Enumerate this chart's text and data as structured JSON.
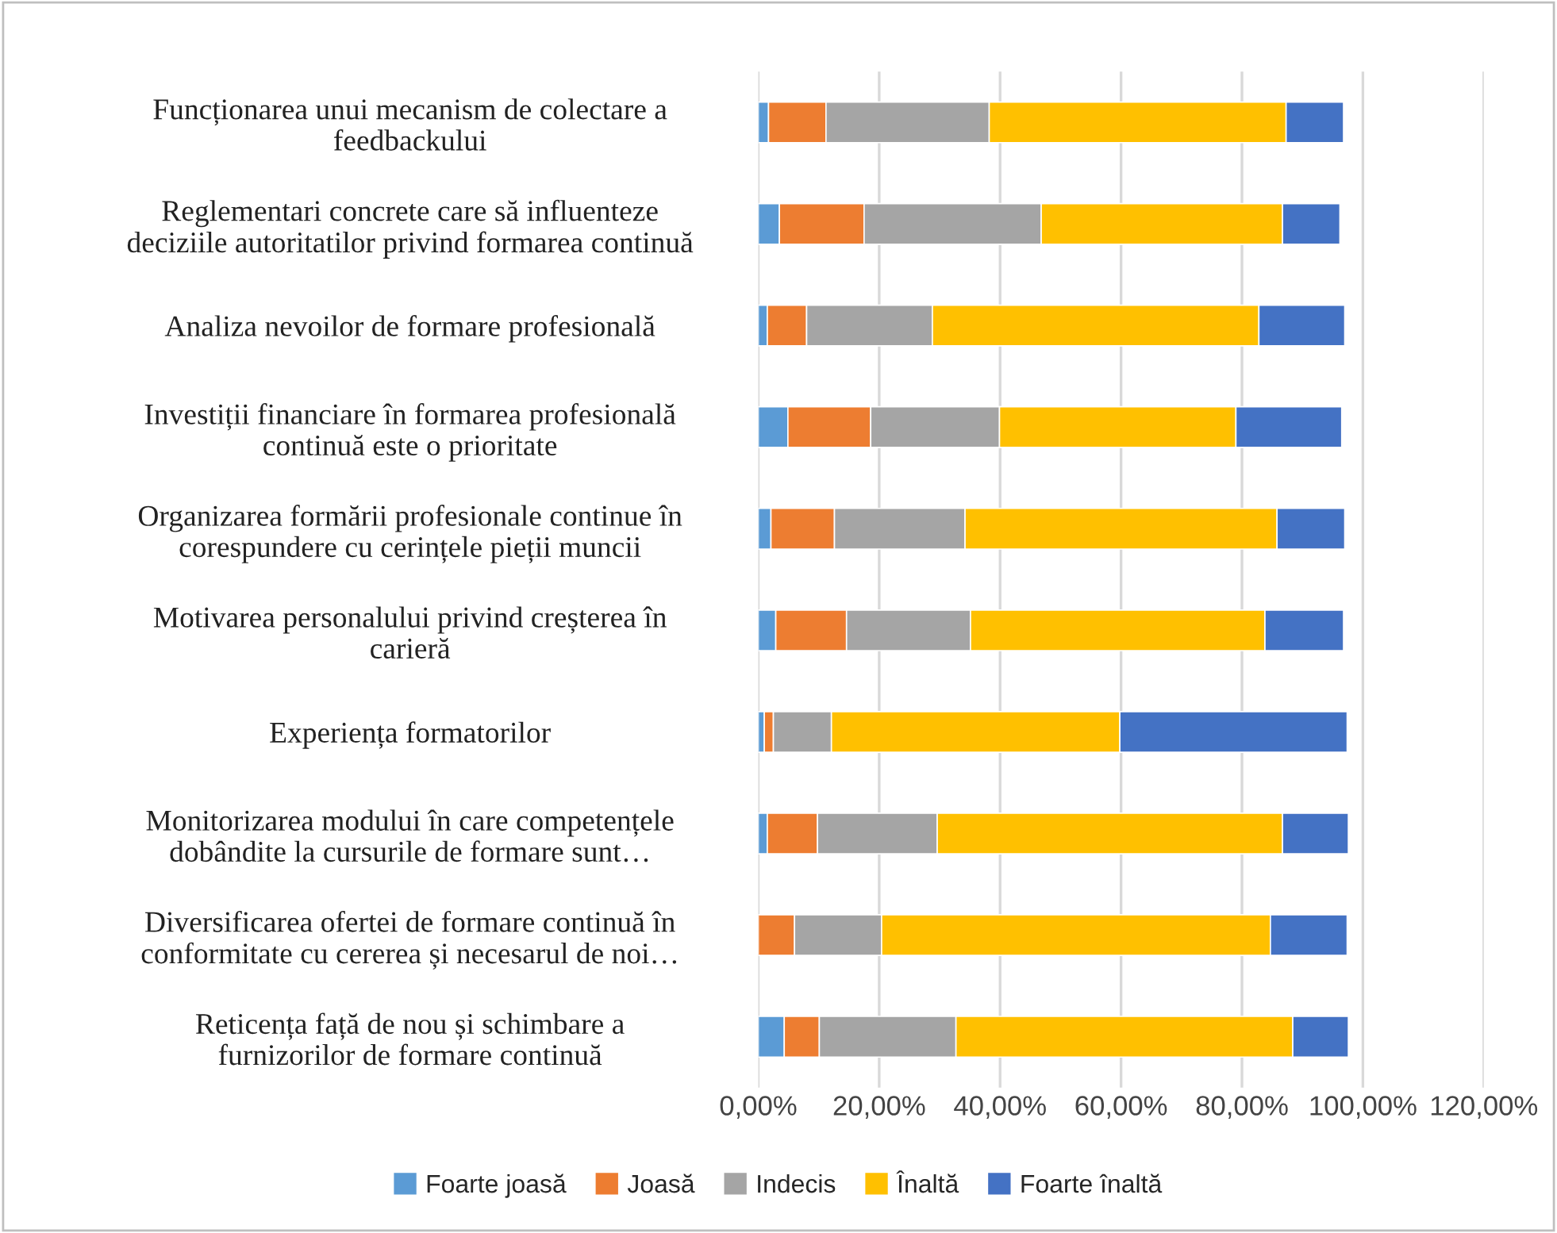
{
  "chart_data": {
    "type": "bar",
    "orientation": "horizontal",
    "stacked": true,
    "categories": [
      "Funcționarea unui mecanism de colectare a\nfeedbackului",
      "Reglementari concrete care să influenteze\ndeciziile autoritatilor privind formarea continuă",
      "Analiza nevoilor de formare profesională",
      "Investiții financiare în formarea profesională\ncontinuă este o prioritate",
      "Organizarea formării profesionale continue în\ncorespundere cu cerințele pieții muncii",
      "Motivarea personalului privind creșterea în\ncarieră",
      "Experiența formatorilor",
      "Monitorizarea modului în care competențele\ndobândite la cursurile de formare sunt…",
      "Diversificarea ofertei de formare continuă în\nconformitate cu cererea și necesarul de noi…",
      "Reticența față de nou și schimbare a\nfurnizorilor de formare continuă"
    ],
    "series": [
      {
        "name": "Foarte joasă",
        "color": "#5b9bd5",
        "values": [
          1.7,
          3.5,
          1.5,
          4.9,
          2.1,
          2.9,
          1.0,
          1.5,
          0,
          4.3
        ]
      },
      {
        "name": "Joasă",
        "color": "#ed7d31",
        "values": [
          9.5,
          14.0,
          6.5,
          13.7,
          10.5,
          11.7,
          1.5,
          8.3,
          6.0,
          5.8
        ]
      },
      {
        "name": "Indecis",
        "color": "#a5a5a5",
        "values": [
          27.0,
          29.3,
          20.8,
          21.3,
          21.6,
          20.5,
          9.6,
          19.8,
          14.4,
          22.6
        ]
      },
      {
        "name": "Înaltă",
        "color": "#ffc000",
        "values": [
          49.1,
          39.9,
          54.0,
          39.1,
          51.6,
          48.7,
          47.7,
          57.1,
          64.3,
          55.7
        ]
      },
      {
        "name": "Foarte înaltă",
        "color": "#4472c4",
        "values": [
          9.5,
          9.5,
          14.2,
          17.5,
          11.2,
          13.0,
          37.6,
          10.9,
          12.7,
          9.2
        ]
      }
    ],
    "xlim": [
      0,
      120
    ],
    "xticks": [
      {
        "value": 0,
        "label": "0,00%"
      },
      {
        "value": 20,
        "label": "20,00%"
      },
      {
        "value": 40,
        "label": "40,00%"
      },
      {
        "value": 60,
        "label": "60,00%"
      },
      {
        "value": 80,
        "label": "80,00%"
      },
      {
        "value": 100,
        "label": "100,00%"
      },
      {
        "value": 120,
        "label": "120,00%"
      }
    ],
    "grid": "x",
    "legend": "bottom"
  }
}
